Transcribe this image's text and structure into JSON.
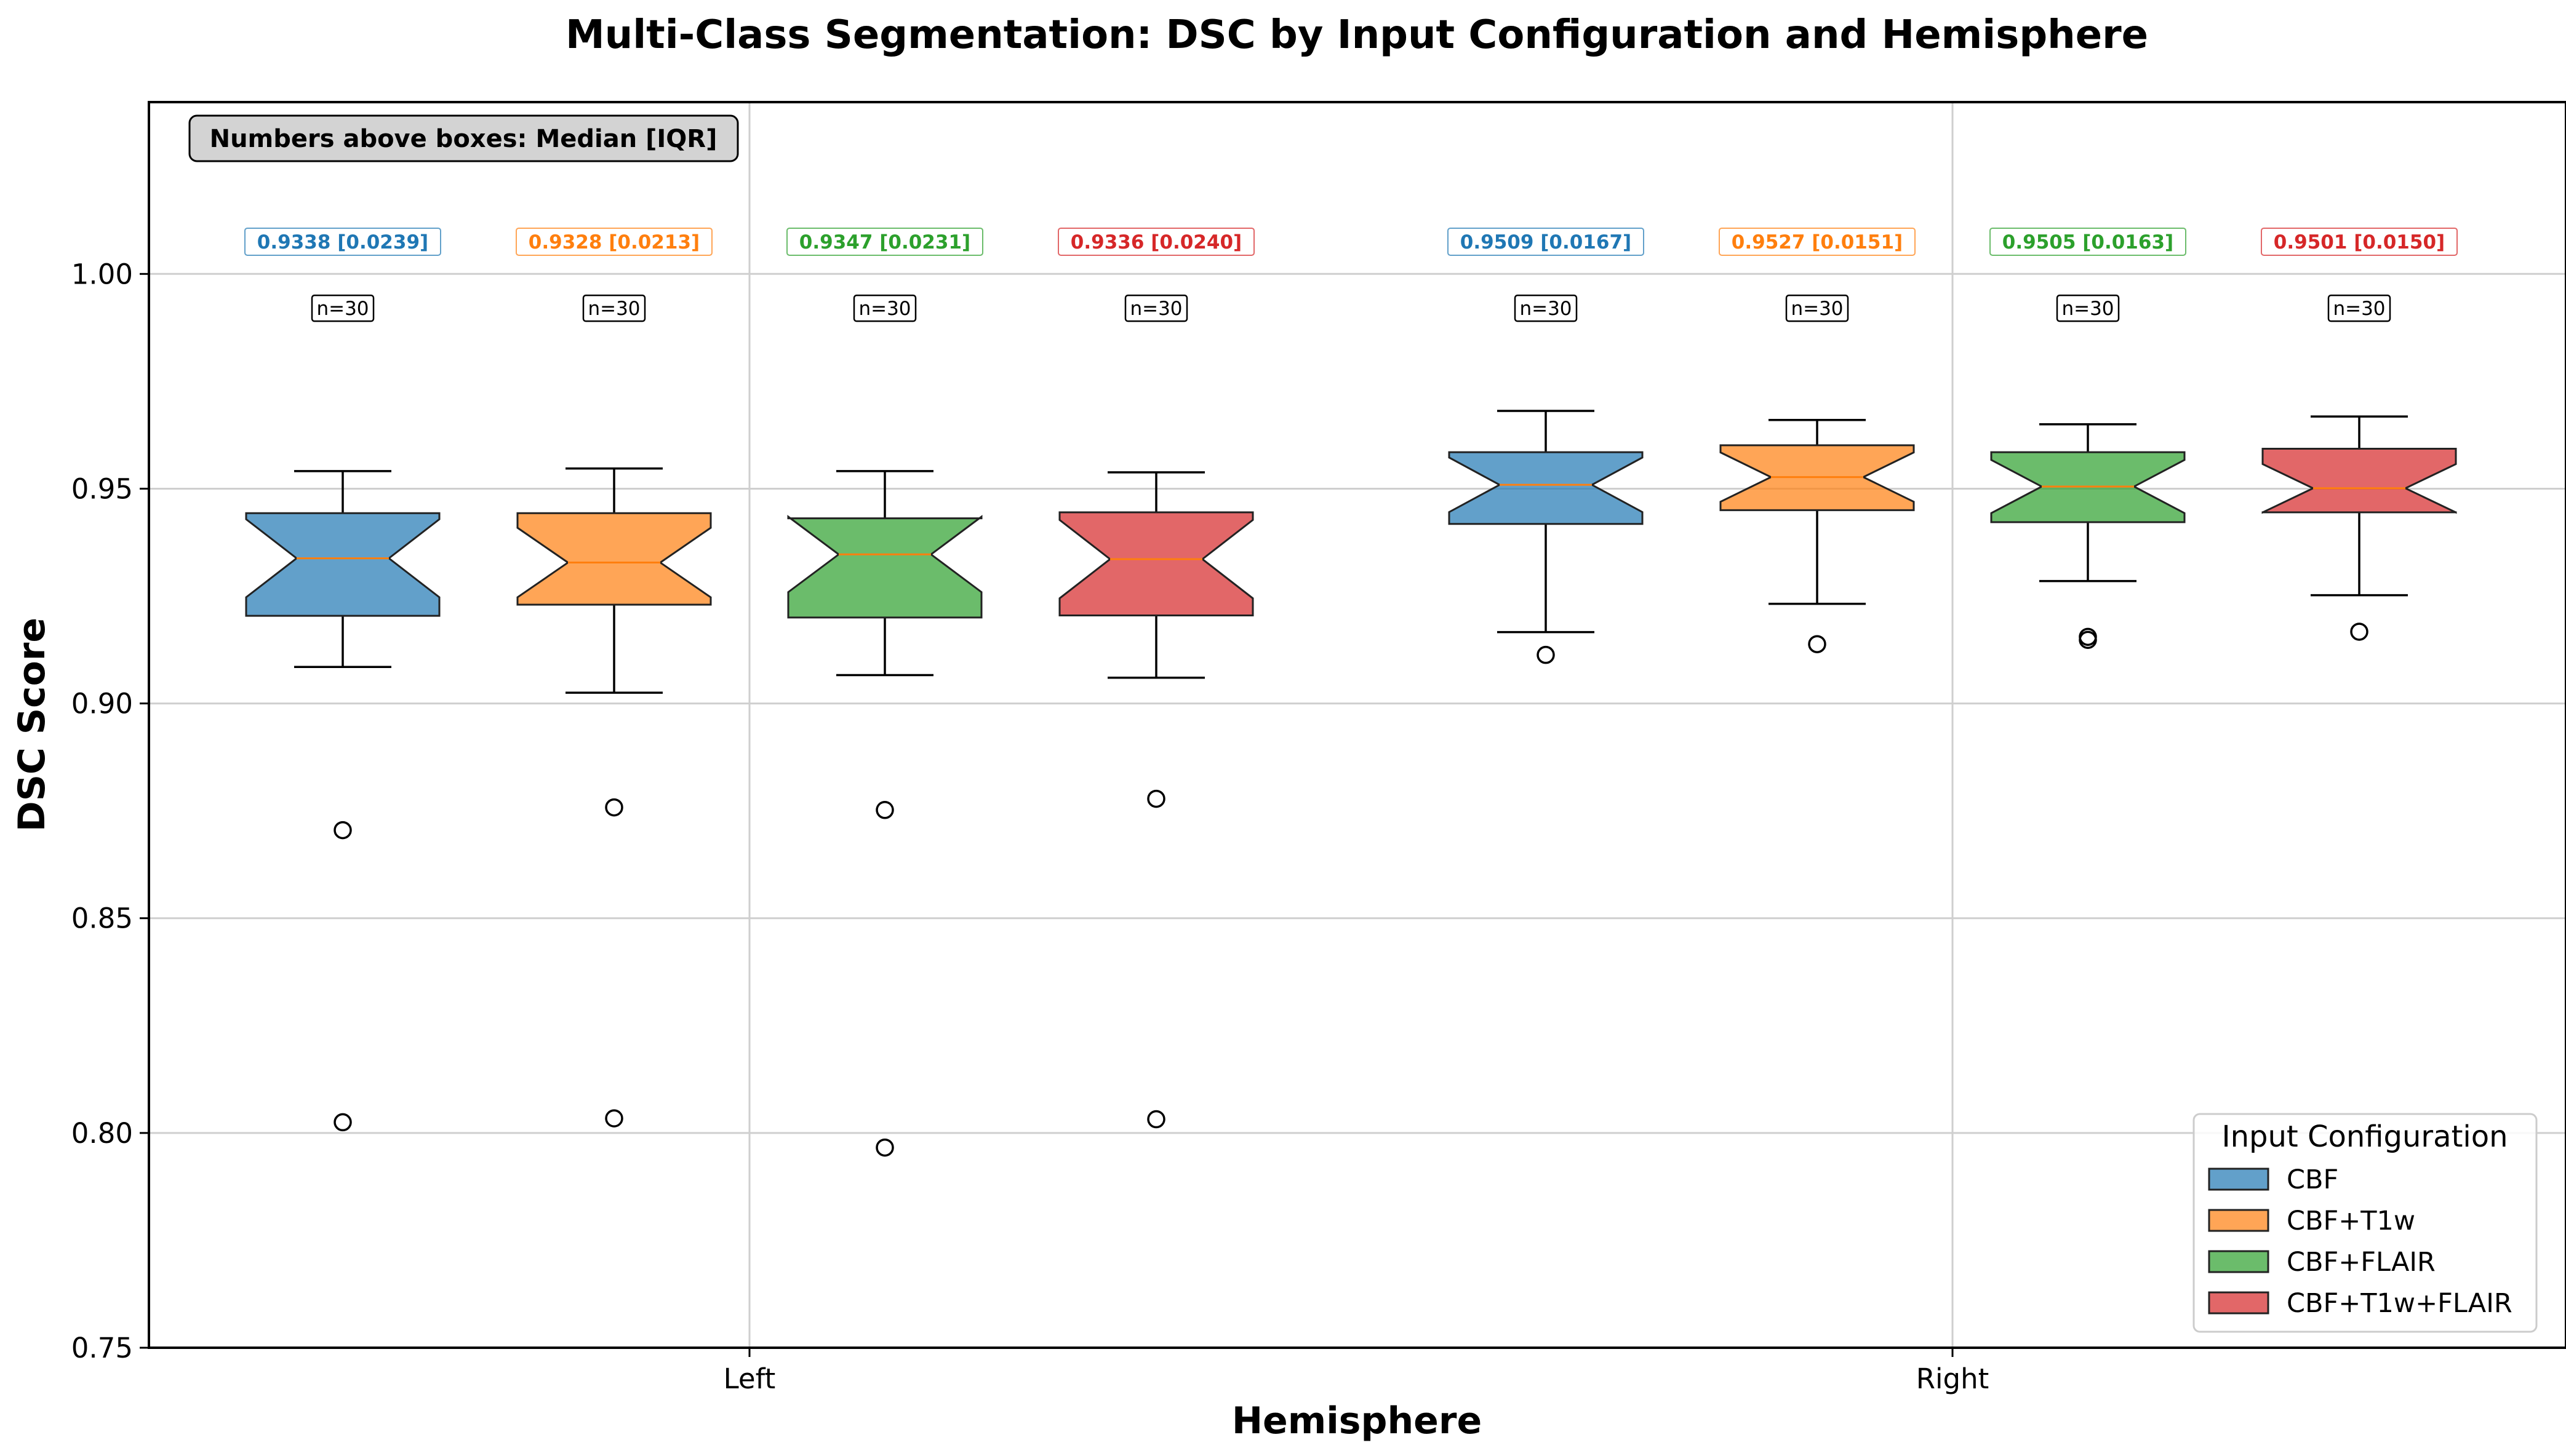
{
  "chart_data": {
    "type": "box",
    "title": "Multi-Class Segmentation: DSC by Input Configuration and Hemisphere",
    "xlabel": "Hemisphere",
    "ylabel": "DSC Score",
    "ylim": [
      0.75,
      1.04
    ],
    "yticks": [
      "0.75",
      "0.80",
      "0.85",
      "0.90",
      "0.95",
      "1.00"
    ],
    "grid": true,
    "categories": [
      "Left",
      "Right"
    ],
    "note": "Numbers above boxes: Median [IQR]",
    "legend": {
      "title": "Input Configuration",
      "placement": "lower-right"
    },
    "series": [
      {
        "name": "CBF",
        "color": "#1f77b4",
        "boxes": [
          {
            "category": "Left",
            "median": 0.9338,
            "q1": 0.9204,
            "q3": 0.9443,
            "whisker_low": 0.9085,
            "whisker_high": 0.9541,
            "outliers": [
              0.8705,
              0.8025
            ],
            "n_label": "n=30",
            "stat_label": "0.9338 [0.0239]"
          },
          {
            "category": "Right",
            "median": 0.9509,
            "q1": 0.9418,
            "q3": 0.9585,
            "whisker_low": 0.9166,
            "whisker_high": 0.9681,
            "outliers": [
              0.9113
            ],
            "n_label": "n=30",
            "stat_label": "0.9509 [0.0167]"
          }
        ]
      },
      {
        "name": "CBF+T1w",
        "color": "#ff7f0e",
        "boxes": [
          {
            "category": "Left",
            "median": 0.9328,
            "q1": 0.923,
            "q3": 0.9443,
            "whisker_low": 0.9025,
            "whisker_high": 0.9547,
            "outliers": [
              0.8758,
              0.8034
            ],
            "n_label": "n=30",
            "stat_label": "0.9328 [0.0213]"
          },
          {
            "category": "Right",
            "median": 0.9527,
            "q1": 0.945,
            "q3": 0.9601,
            "whisker_low": 0.9232,
            "whisker_high": 0.966,
            "outliers": [
              0.9138
            ],
            "n_label": "n=30",
            "stat_label": "0.9527 [0.0151]"
          }
        ]
      },
      {
        "name": "CBF+FLAIR",
        "color": "#2ca02c",
        "boxes": [
          {
            "category": "Left",
            "median": 0.9347,
            "q1": 0.92,
            "q3": 0.9431,
            "whisker_low": 0.9066,
            "whisker_high": 0.9541,
            "outliers": [
              0.8752,
              0.7966
            ],
            "n_label": "n=30",
            "stat_label": "0.9347 [0.0231]"
          },
          {
            "category": "Right",
            "median": 0.9505,
            "q1": 0.9422,
            "q3": 0.9585,
            "whisker_low": 0.9285,
            "whisker_high": 0.965,
            "outliers": [
              0.9155,
              0.9148
            ],
            "n_label": "n=30",
            "stat_label": "0.9505 [0.0163]"
          }
        ]
      },
      {
        "name": "CBF+T1w+FLAIR",
        "color": "#d62728",
        "boxes": [
          {
            "category": "Left",
            "median": 0.9336,
            "q1": 0.9205,
            "q3": 0.9445,
            "whisker_low": 0.906,
            "whisker_high": 0.9538,
            "outliers": [
              0.8778,
              0.8032
            ],
            "n_label": "n=30",
            "stat_label": "0.9336 [0.0240]"
          },
          {
            "category": "Right",
            "median": 0.9501,
            "q1": 0.9445,
            "q3": 0.9593,
            "whisker_low": 0.9252,
            "whisker_high": 0.9668,
            "outliers": [
              0.9167
            ],
            "n_label": "n=30",
            "stat_label": "0.9501 [0.0150]"
          }
        ]
      }
    ]
  }
}
